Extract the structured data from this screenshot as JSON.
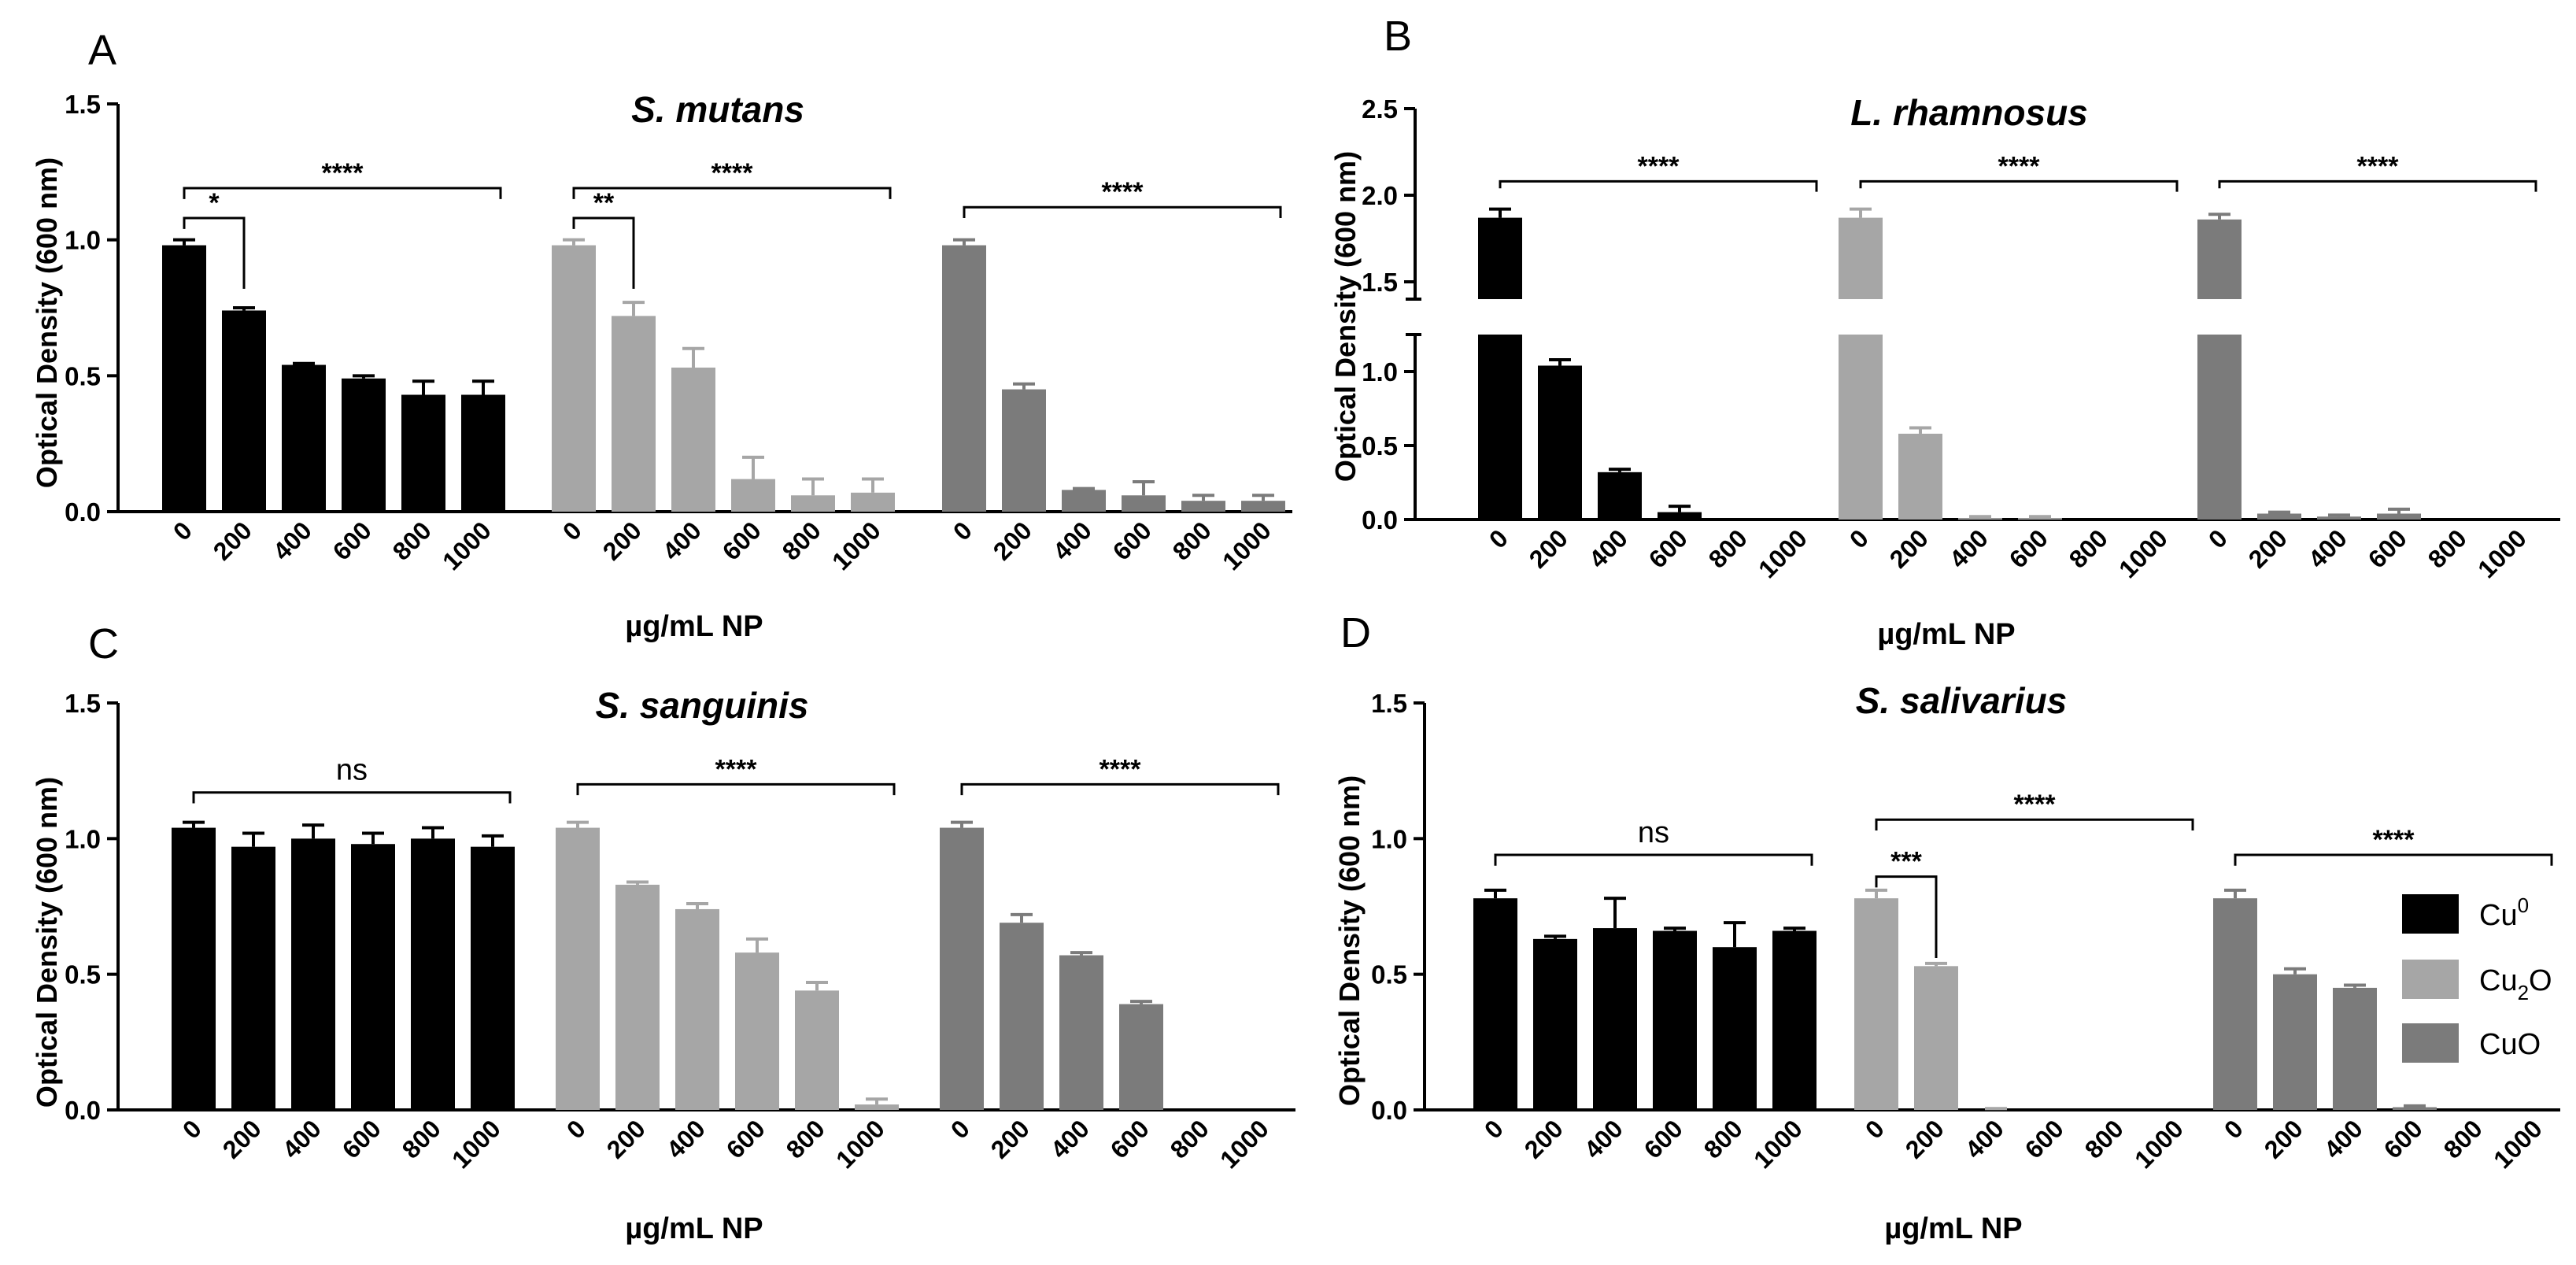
{
  "colors": {
    "Cu0": "#000000",
    "Cu2O": "#a6a6a6",
    "CuO": "#7b7b7b"
  },
  "legend": [
    {
      "key": "Cu0",
      "label": "Cu",
      "sup": "0",
      "sub": "",
      "after": ""
    },
    {
      "key": "Cu2O",
      "label": "Cu",
      "sup": "",
      "sub": "2",
      "after": "O"
    },
    {
      "key": "CuO",
      "label": "CuO",
      "sup": "",
      "sub": "",
      "after": ""
    }
  ],
  "chart_data": [
    {
      "panel": "A",
      "type": "bar",
      "title": "S. mutans",
      "ylabel": "Optical Density (600 nm)",
      "xlabel": "µg/mL NP",
      "categories": [
        "0",
        "200",
        "400",
        "600",
        "800",
        "1000"
      ],
      "ylim": [
        0,
        1.5
      ],
      "yticks": [
        "0.0",
        "0.5",
        "1.0",
        "1.5"
      ],
      "series": [
        {
          "name": "Cu0",
          "values": [
            0.98,
            0.74,
            0.54,
            0.49,
            0.43,
            0.43
          ],
          "errors": [
            0.02,
            0.01,
            0.005,
            0.01,
            0.05,
            0.05
          ]
        },
        {
          "name": "Cu2O",
          "values": [
            0.98,
            0.72,
            0.53,
            0.12,
            0.06,
            0.07
          ],
          "errors": [
            0.02,
            0.05,
            0.07,
            0.08,
            0.06,
            0.05
          ]
        },
        {
          "name": "CuO",
          "values": [
            0.98,
            0.45,
            0.08,
            0.06,
            0.04,
            0.04
          ],
          "errors": [
            0.02,
            0.02,
            0.005,
            0.05,
            0.02,
            0.02
          ]
        }
      ],
      "annotations": [
        {
          "text": "****",
          "group": 0,
          "from": 0,
          "to": 5,
          "y": 1.19,
          "drop": 0.04
        },
        {
          "text": "*",
          "group": 0,
          "from": 0,
          "to": 1,
          "y": 1.08,
          "drop": 0.26
        },
        {
          "text": "****",
          "group": 1,
          "from": 0,
          "to": 5,
          "y": 1.19,
          "drop": 0.04
        },
        {
          "text": "**",
          "group": 1,
          "from": 0,
          "to": 1,
          "y": 1.08,
          "drop": 0.26
        },
        {
          "text": "****",
          "group": 2,
          "from": 0,
          "to": 5,
          "y": 1.12,
          "drop": 0.04
        }
      ]
    },
    {
      "panel": "B",
      "type": "bar",
      "title": "L. rhamnosus",
      "ylabel": "Optical Density (600 nm)",
      "xlabel": "µg/mL NP",
      "categories": [
        "0",
        "200",
        "400",
        "600",
        "800",
        "1000"
      ],
      "ylim": [
        0,
        2.5
      ],
      "axis_break": [
        1.25,
        1.4
      ],
      "yticks": [
        "0.0",
        "0.5",
        "1.0",
        "1.5",
        "2.0",
        "2.5"
      ],
      "series": [
        {
          "name": "Cu0",
          "values": [
            1.87,
            1.04,
            0.32,
            0.05,
            0.0,
            0.0
          ],
          "errors": [
            0.05,
            0.04,
            0.02,
            0.04,
            0.0,
            0.0
          ]
        },
        {
          "name": "Cu2O",
          "values": [
            1.87,
            0.58,
            0.01,
            0.01,
            0.0,
            0.0
          ],
          "errors": [
            0.05,
            0.04,
            0.01,
            0.01,
            0.0,
            0.0
          ]
        },
        {
          "name": "CuO",
          "values": [
            1.86,
            0.04,
            0.02,
            0.04,
            0.0,
            0.0
          ],
          "errors": [
            0.03,
            0.01,
            0.01,
            0.03,
            0.0,
            0.0
          ]
        }
      ],
      "annotations": [
        {
          "text": "****",
          "group": 0,
          "from": 0,
          "to": 5,
          "y": 2.08,
          "drop": 0.06
        },
        {
          "text": "****",
          "group": 1,
          "from": 0,
          "to": 5,
          "y": 2.08,
          "drop": 0.06
        },
        {
          "text": "****",
          "group": 2,
          "from": 0,
          "to": 5,
          "y": 2.08,
          "drop": 0.06
        }
      ]
    },
    {
      "panel": "C",
      "type": "bar",
      "title": "S. sanguinis",
      "ylabel": "Optical Density (600 nm)",
      "xlabel": "µg/mL NP",
      "categories": [
        "0",
        "200",
        "400",
        "600",
        "800",
        "1000"
      ],
      "ylim": [
        0,
        1.5
      ],
      "yticks": [
        "0.0",
        "0.5",
        "1.0",
        "1.5"
      ],
      "series": [
        {
          "name": "Cu0",
          "values": [
            1.04,
            0.97,
            1.0,
            0.98,
            1.0,
            0.97
          ],
          "errors": [
            0.02,
            0.05,
            0.05,
            0.04,
            0.04,
            0.04
          ]
        },
        {
          "name": "Cu2O",
          "values": [
            1.04,
            0.83,
            0.74,
            0.58,
            0.44,
            0.02
          ],
          "errors": [
            0.02,
            0.01,
            0.02,
            0.05,
            0.03,
            0.02
          ]
        },
        {
          "name": "CuO",
          "values": [
            1.04,
            0.69,
            0.57,
            0.39,
            0.0,
            0.0
          ],
          "errors": [
            0.02,
            0.03,
            0.01,
            0.01,
            0.0,
            0.0
          ]
        }
      ],
      "annotations": [
        {
          "text": "ns",
          "group": 0,
          "from": 0,
          "to": 5,
          "y": 1.17,
          "drop": 0.04
        },
        {
          "text": "****",
          "group": 1,
          "from": 0,
          "to": 5,
          "y": 1.2,
          "drop": 0.04
        },
        {
          "text": "****",
          "group": 2,
          "from": 0,
          "to": 5,
          "y": 1.2,
          "drop": 0.04
        }
      ]
    },
    {
      "panel": "D",
      "type": "bar",
      "title": "S. salivarius",
      "ylabel": "Optical Density (600 nm)",
      "xlabel": "µg/mL NP",
      "categories": [
        "0",
        "200",
        "400",
        "600",
        "800",
        "1000"
      ],
      "ylim": [
        0,
        1.5
      ],
      "yticks": [
        "0.0",
        "0.5",
        "1.0",
        "1.5"
      ],
      "series": [
        {
          "name": "Cu0",
          "values": [
            0.78,
            0.63,
            0.67,
            0.66,
            0.6,
            0.66
          ],
          "errors": [
            0.03,
            0.01,
            0.11,
            0.01,
            0.09,
            0.01
          ]
        },
        {
          "name": "Cu2O",
          "values": [
            0.78,
            0.53,
            0.0,
            0.0,
            0.0,
            0.0
          ],
          "errors": [
            0.03,
            0.01,
            0.005,
            0.0,
            0.0,
            0.0
          ]
        },
        {
          "name": "CuO",
          "values": [
            0.78,
            0.5,
            0.45,
            0.01,
            0.0,
            0.0
          ],
          "errors": [
            0.03,
            0.02,
            0.01,
            0.005,
            0.0,
            0.0
          ]
        }
      ],
      "annotations": [
        {
          "text": "ns",
          "group": 0,
          "from": 0,
          "to": 5,
          "y": 0.94,
          "drop": 0.04
        },
        {
          "text": "****",
          "group": 1,
          "from": 0,
          "to": 5,
          "y": 1.07,
          "drop": 0.04
        },
        {
          "text": "***",
          "group": 1,
          "from": 0,
          "to": 1,
          "y": 0.86,
          "drop": 0.3
        },
        {
          "text": "****",
          "group": 2,
          "from": 0,
          "to": 5,
          "y": 0.94,
          "drop": 0.04
        }
      ]
    }
  ]
}
